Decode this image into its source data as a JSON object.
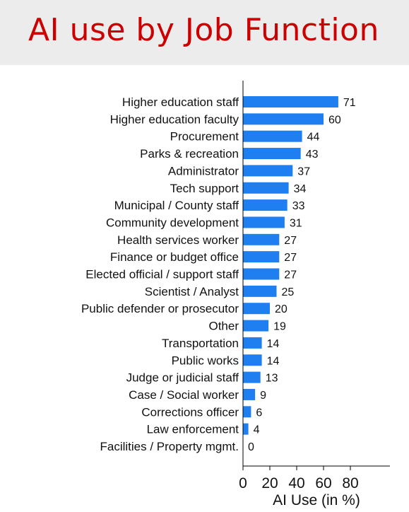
{
  "header": {
    "title": "AI use by Job Function"
  },
  "colors": {
    "title": "#cc0000",
    "bar": "#1f7ff0",
    "header_bg": "#ececec"
  },
  "chart_data": {
    "type": "bar",
    "orientation": "horizontal",
    "categories": [
      "Higher education staff",
      "Higher education faculty",
      "Procurement",
      "Parks & recreation",
      "Administrator",
      "Tech support",
      "Municipal / County staff",
      "Community development",
      "Health services worker",
      "Finance or budget office",
      "Elected official / support staff",
      "Scientist / Analyst",
      "Public defender or prosecutor",
      "Other",
      "Transportation",
      "Public works",
      "Judge or judicial staff",
      "Case / Social worker",
      "Corrections officer",
      "Law enforcement",
      "Facilities / Property mgmt."
    ],
    "values": [
      71,
      60,
      44,
      43,
      37,
      34,
      33,
      31,
      27,
      27,
      27,
      25,
      20,
      19,
      14,
      14,
      13,
      9,
      6,
      4,
      0
    ],
    "data_labels": [
      "71",
      "60",
      "44",
      "43",
      "37",
      "34",
      "33",
      "31",
      "27",
      "27",
      "27",
      "25",
      "20",
      "19",
      "14",
      "14",
      "13",
      "9",
      "6",
      "4",
      "0"
    ],
    "xlabel": "AI Use (in %)",
    "xticks": [
      "0",
      "20",
      "40",
      "60",
      "80"
    ],
    "xlim": [
      0,
      110
    ],
    "grid": false,
    "legend": "none"
  }
}
